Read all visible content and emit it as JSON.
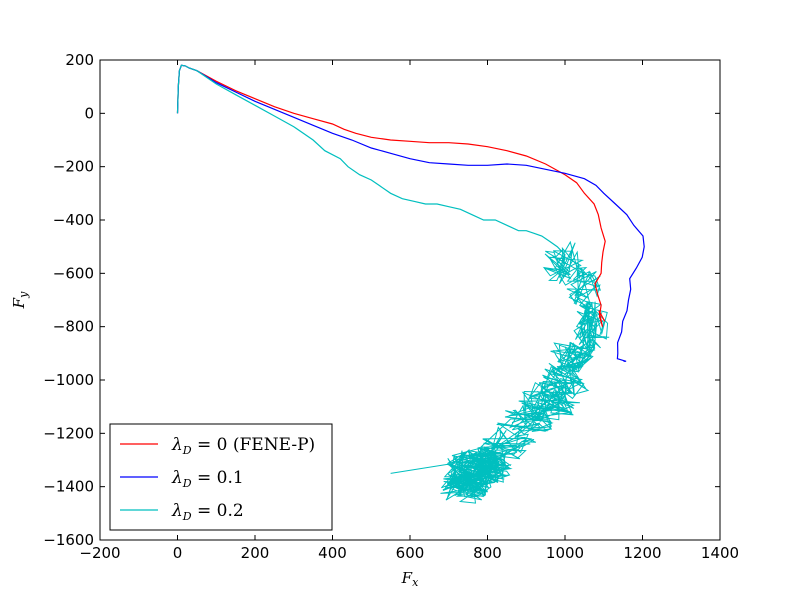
{
  "chart_data": {
    "type": "line",
    "xlabel": "F",
    "xlabel_sub": "x",
    "ylabel": "F",
    "ylabel_sub": "y",
    "xlim": [
      -200,
      1400
    ],
    "ylim": [
      -1600,
      200
    ],
    "xticks": [
      -200,
      0,
      200,
      400,
      600,
      800,
      1000,
      1200,
      1400
    ],
    "yticks": [
      -1600,
      -1400,
      -1200,
      -1000,
      -800,
      -600,
      -400,
      -200,
      0,
      200
    ],
    "grid": false,
    "legend_position": "lower-left",
    "series": [
      {
        "name": "λD = 0 (FENE-P)",
        "label_main": "λ",
        "label_sub": "D",
        "label_rest": " = 0 (FENE-P)",
        "color": "#ff0000",
        "x": [
          0,
          2,
          5,
          10,
          20,
          30,
          50,
          100,
          150,
          200,
          250,
          300,
          350,
          400,
          430,
          460,
          500,
          550,
          600,
          650,
          700,
          750,
          800,
          850,
          900,
          950,
          1000,
          1030,
          1050,
          1070,
          1080,
          1090,
          1100,
          1100,
          1095,
          1090,
          1085,
          1090,
          1090,
          1085,
          1095,
          1085,
          1100
        ],
        "y": [
          0,
          100,
          160,
          180,
          178,
          170,
          160,
          120,
          85,
          55,
          25,
          0,
          -20,
          -40,
          -60,
          -75,
          -90,
          -100,
          -105,
          -110,
          -110,
          -115,
          -125,
          -140,
          -160,
          -190,
          -230,
          -260,
          -300,
          -340,
          -380,
          -430,
          -480,
          -520,
          -560,
          -600,
          -640,
          -680,
          -720,
          -760,
          -800,
          -740,
          -780
        ]
      },
      {
        "name": "λD = 0.1",
        "label_main": "λ",
        "label_sub": "D",
        "label_rest": " = 0.1",
        "color": "#0000ff",
        "x": [
          0,
          2,
          5,
          10,
          20,
          30,
          50,
          100,
          150,
          200,
          250,
          300,
          350,
          400,
          450,
          500,
          550,
          600,
          650,
          700,
          750,
          800,
          850,
          900,
          950,
          1000,
          1050,
          1080,
          1100,
          1130,
          1160,
          1180,
          1195,
          1200,
          1195,
          1180,
          1170,
          1165,
          1160,
          1155,
          1150,
          1150,
          1140,
          1130,
          1140,
          1150,
          1150
        ],
        "y": [
          0,
          100,
          160,
          180,
          178,
          170,
          160,
          115,
          80,
          45,
          15,
          -15,
          -45,
          -75,
          -100,
          -130,
          -150,
          -170,
          -185,
          -190,
          -195,
          -195,
          -190,
          -195,
          -210,
          -225,
          -245,
          -270,
          -300,
          -340,
          -380,
          -420,
          -460,
          -500,
          -540,
          -580,
          -620,
          -660,
          -700,
          -740,
          -780,
          -820,
          -860,
          -900,
          -920,
          -930,
          -930
        ]
      },
      {
        "name": "λD = 0.2",
        "label_main": "λ",
        "label_sub": "D",
        "label_rest": " = 0.2",
        "color": "#00bfbf",
        "x": [
          0,
          2,
          5,
          10,
          20,
          30,
          50,
          100,
          150,
          200,
          250,
          300,
          350,
          380,
          420,
          440,
          470,
          500,
          520,
          550,
          580,
          610,
          640,
          670,
          700,
          730,
          760,
          790,
          820,
          850,
          880,
          900,
          920,
          940,
          960,
          980,
          1000
        ],
        "y": [
          0,
          100,
          160,
          180,
          178,
          170,
          160,
          110,
          70,
          30,
          -10,
          -50,
          -100,
          -140,
          -170,
          -200,
          -230,
          -250,
          -270,
          -300,
          -320,
          -330,
          -340,
          -340,
          -350,
          -360,
          -380,
          -400,
          -400,
          -420,
          -440,
          -440,
          -450,
          -460,
          -480,
          -500,
          -530
        ]
      }
    ]
  }
}
